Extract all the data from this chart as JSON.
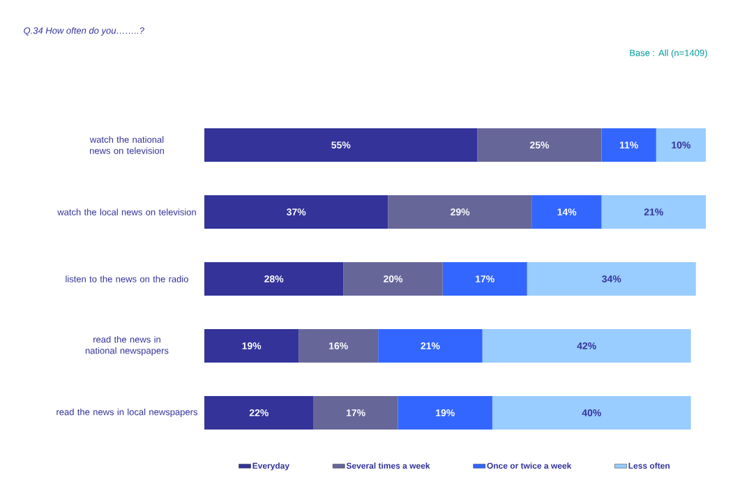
{
  "chart_data": {
    "type": "bar",
    "orientation": "horizontal",
    "stacked": true,
    "legend": "bottom",
    "title": "Q.34 How often do you……..?",
    "annotations": [
      "Base : All (n=1409)"
    ],
    "categories": [
      "watch the national news on television",
      "watch the local news on television",
      "listen to the news on the radio",
      "read the news in national newspapers",
      "read the news in local newspapers"
    ],
    "series": [
      {
        "name": "Everyday",
        "color": "#333399",
        "values": [
          55,
          37,
          28,
          19,
          22
        ],
        "value_labels": [
          "55%",
          "37%",
          "28%",
          "19%",
          "22%"
        ]
      },
      {
        "name": "Several times a week",
        "color": "#666699",
        "values": [
          25,
          29,
          20,
          16,
          17
        ],
        "value_labels": [
          "25%",
          "29%",
          "20%",
          "16%",
          "17%"
        ]
      },
      {
        "name": "Once or twice a week",
        "color": "#3366ff",
        "values": [
          11,
          14,
          17,
          21,
          19
        ],
        "value_labels": [
          "11%",
          "14%",
          "17%",
          "21%",
          "19%"
        ]
      },
      {
        "name": "Less often",
        "color": "#99ccff",
        "values": [
          10,
          21,
          34,
          42,
          40
        ],
        "value_labels": [
          "10%",
          "21%",
          "34%",
          "42%",
          "40%"
        ]
      }
    ]
  }
}
